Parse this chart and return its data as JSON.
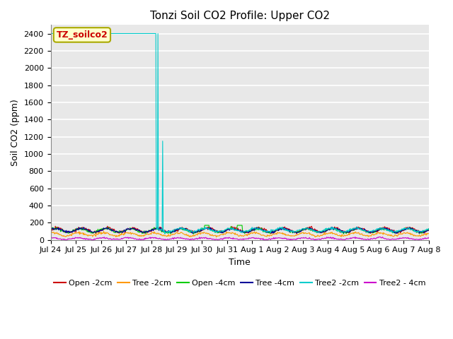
{
  "title": "Tonzi Soil CO2 Profile: Upper CO2",
  "ylabel": "Soil CO2 (ppm)",
  "xlabel": "Time",
  "annotation_text": "TZ_soilco2",
  "annotation_color": "#cc0000",
  "annotation_bg": "#ffffcc",
  "annotation_border": "#aaaa00",
  "ylim": [
    0,
    2500
  ],
  "yticks": [
    0,
    200,
    400,
    600,
    800,
    1000,
    1200,
    1400,
    1600,
    1800,
    2000,
    2200,
    2400
  ],
  "bg_color": "#e8e8e8",
  "grid_color": "#ffffff",
  "series": [
    {
      "label": "Open -2cm",
      "color": "#cc0000"
    },
    {
      "label": "Tree -2cm",
      "color": "#ff9900"
    },
    {
      "label": "Open -4cm",
      "color": "#00cc00"
    },
    {
      "label": "Tree -4cm",
      "color": "#000099"
    },
    {
      "label": "Tree2 -2cm",
      "color": "#00cccc"
    },
    {
      "label": "Tree2 - 4cm",
      "color": "#cc00cc"
    }
  ],
  "total_days": 15,
  "num_points": 720,
  "x_tick_labels": [
    "Jul 24",
    "Jul 25",
    "Jul 26",
    "Jul 27",
    "Jul 28",
    "Jul 29",
    "Jul 30",
    "Jul 31",
    "Aug 1",
    "Aug 2",
    "Aug 3",
    "Aug 4",
    "Aug 5",
    "Aug 6",
    "Aug 7",
    "Aug 8"
  ]
}
